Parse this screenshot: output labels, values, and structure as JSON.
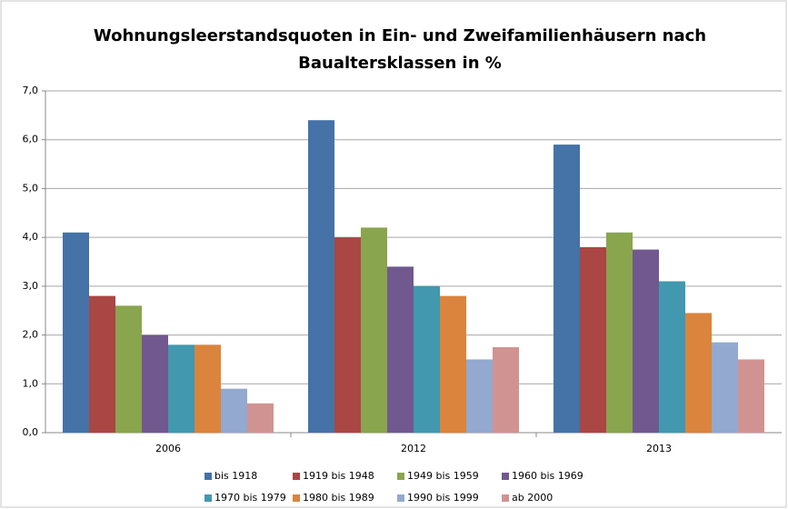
{
  "chart_data": {
    "type": "bar",
    "title": [
      "Wohnungsleerstandsquoten in Ein- und Zweifamilienhäusern nach",
      "Baualtersklassen in %"
    ],
    "categories": [
      "2006",
      "2012",
      "2013"
    ],
    "series": [
      {
        "name": "bis 1918",
        "color": "#4572a7",
        "values": [
          4.1,
          6.4,
          5.9
        ]
      },
      {
        "name": "1919 bis 1948",
        "color": "#aa4643",
        "values": [
          2.8,
          4.0,
          3.8
        ]
      },
      {
        "name": "1949 bis 1959",
        "color": "#89a54e",
        "values": [
          2.6,
          4.2,
          4.1
        ]
      },
      {
        "name": "1960 bis 1969",
        "color": "#71588f",
        "values": [
          2.0,
          3.4,
          3.75
        ]
      },
      {
        "name": "1970 bis 1979",
        "color": "#4198af",
        "values": [
          1.8,
          3.0,
          3.1
        ]
      },
      {
        "name": "1980 bis 1989",
        "color": "#db843d",
        "values": [
          1.8,
          2.8,
          2.45
        ]
      },
      {
        "name": "1990 bis 1999",
        "color": "#93a9cf",
        "values": [
          0.9,
          1.5,
          1.85
        ]
      },
      {
        "name": "ab 2000",
        "color": "#d19392",
        "values": [
          0.6,
          1.75,
          1.5
        ]
      }
    ],
    "ylim": [
      0,
      7
    ],
    "yticks": [
      {
        "value": 0,
        "label": "0,0"
      },
      {
        "value": 1,
        "label": "1,0"
      },
      {
        "value": 2,
        "label": "2,0"
      },
      {
        "value": 3,
        "label": "3,0"
      },
      {
        "value": 4,
        "label": "4,0"
      },
      {
        "value": 5,
        "label": "5,0"
      },
      {
        "value": 6,
        "label": "6,0"
      },
      {
        "value": 7,
        "label": "7,0"
      }
    ],
    "grid": true,
    "legend": "bottom"
  }
}
